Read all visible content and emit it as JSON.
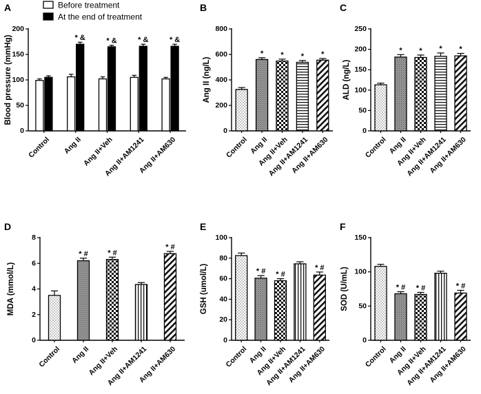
{
  "chart_data": [
    {
      "id": "A",
      "letter": "A",
      "type": "bar",
      "ylabel": "Blood pressure (mmHg)",
      "ylim": [
        0,
        200
      ],
      "yticks": [
        0,
        50,
        100,
        150,
        200
      ],
      "categories": [
        "Control",
        "Ang II",
        "Ang II+Veh",
        "Ang II+AM1241",
        "Ang II+AM630"
      ],
      "legend_position": "top-left",
      "series": [
        {
          "name": "Before treatment",
          "pattern": "white",
          "values": [
            99,
            106,
            102,
            105,
            102
          ],
          "errors": [
            3,
            5,
            4,
            4,
            3
          ],
          "marks": [
            "",
            "",
            "",
            "",
            ""
          ]
        },
        {
          "name": "At the end of treatment",
          "pattern": "black",
          "values": [
            105,
            170,
            165,
            166,
            166
          ],
          "errors": [
            3,
            4,
            3,
            4,
            4
          ],
          "marks": [
            "",
            "* &",
            "* &",
            "* &",
            "* &"
          ]
        }
      ]
    },
    {
      "id": "B",
      "letter": "B",
      "type": "bar",
      "ylabel": "Ang II (ng/L)",
      "ylim": [
        0,
        800
      ],
      "yticks": [
        0,
        200,
        400,
        600,
        800
      ],
      "categories": [
        "Control",
        "Ang II",
        "Ang II+Veh",
        "Ang II+AM1241",
        "Ang II+AM630"
      ],
      "patterns": [
        "dots",
        "gray",
        "check",
        "hlines",
        "diag"
      ],
      "values": [
        325,
        560,
        548,
        538,
        555
      ],
      "errors": [
        15,
        14,
        15,
        14,
        13
      ],
      "marks": [
        "",
        "*",
        "*",
        "*",
        "*"
      ]
    },
    {
      "id": "C",
      "letter": "C",
      "type": "bar",
      "ylabel": "ALD (ng/L)",
      "ylim": [
        0,
        250
      ],
      "yticks": [
        0,
        50,
        100,
        150,
        200,
        250
      ],
      "categories": [
        "Control",
        "Ang II",
        "Ang II+Veh",
        "Ang II+AM1241",
        "Ang II+AM630"
      ],
      "patterns": [
        "dots",
        "gray",
        "check",
        "hlines",
        "diag"
      ],
      "values": [
        113,
        181,
        180,
        183,
        184
      ],
      "errors": [
        4,
        6,
        6,
        8,
        6
      ],
      "marks": [
        "",
        "*",
        "*",
        "*",
        "*"
      ]
    },
    {
      "id": "D",
      "letter": "D",
      "type": "bar",
      "ylabel": "MDA (mmol/L)",
      "ylim": [
        0,
        8
      ],
      "yticks": [
        0,
        2,
        4,
        6,
        8
      ],
      "categories": [
        "Control",
        "Ang II",
        "Ang II+Veh",
        "Ang II+AM1241",
        "Ang II+AM630"
      ],
      "patterns": [
        "dots",
        "gray",
        "check",
        "vlines",
        "diag"
      ],
      "values": [
        3.5,
        6.2,
        6.3,
        4.35,
        6.75
      ],
      "errors": [
        0.35,
        0.2,
        0.18,
        0.15,
        0.18
      ],
      "marks": [
        "",
        "* #",
        "* #",
        "",
        "* #"
      ]
    },
    {
      "id": "E",
      "letter": "E",
      "type": "bar",
      "ylabel": "GSH (umol/L)",
      "ylim": [
        0,
        100
      ],
      "yticks": [
        0,
        20,
        40,
        60,
        80,
        100
      ],
      "categories": [
        "Control",
        "Ang II",
        "Ang II+Veh",
        "Ang II+AM1241",
        "Ang II+AM630"
      ],
      "patterns": [
        "dots",
        "gray",
        "check",
        "vlines",
        "diag"
      ],
      "values": [
        82.5,
        60.5,
        58,
        74.5,
        63.5
      ],
      "errors": [
        2.5,
        2.5,
        2,
        2,
        3
      ],
      "marks": [
        "",
        "* #",
        "* #",
        "",
        "* #"
      ]
    },
    {
      "id": "F",
      "letter": "F",
      "type": "bar",
      "ylabel": "SOD (U/mL)",
      "ylim": [
        0,
        150
      ],
      "yticks": [
        0,
        50,
        100,
        150
      ],
      "categories": [
        "Control",
        "Ang II",
        "Ang II+Veh",
        "Ang II+AM1241",
        "Ang II+AM630"
      ],
      "patterns": [
        "dots",
        "gray",
        "check",
        "vlines",
        "diag"
      ],
      "values": [
        108,
        68,
        67,
        98,
        69
      ],
      "errors": [
        3,
        3,
        3,
        3,
        4
      ],
      "marks": [
        "",
        "* #",
        "* #",
        "",
        "* #"
      ]
    }
  ]
}
